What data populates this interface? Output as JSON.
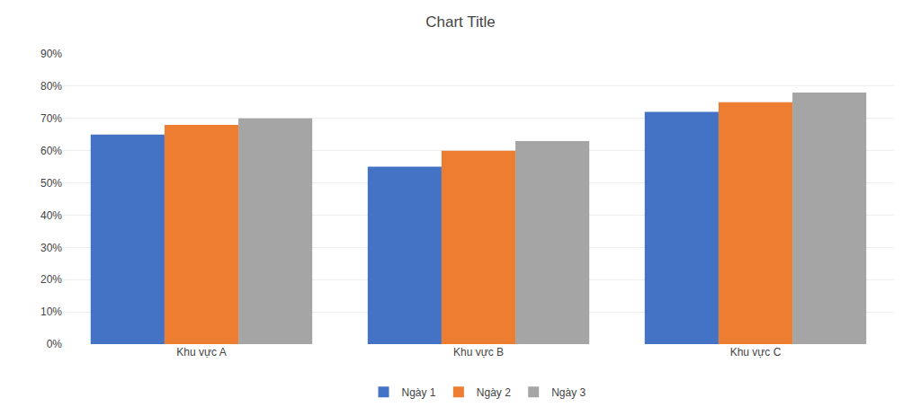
{
  "chart_data": {
    "type": "bar",
    "title": "Chart Title",
    "categories": [
      "Khu vực A",
      "Khu vực B",
      "Khu vực C"
    ],
    "series": [
      {
        "name": "Ngày 1",
        "values": [
          0.65,
          0.55,
          0.72
        ],
        "color": "#4472C4"
      },
      {
        "name": "Ngày 2",
        "values": [
          0.68,
          0.6,
          0.75
        ],
        "color": "#ED7D31"
      },
      {
        "name": "Ngày 3",
        "values": [
          0.7,
          0.63,
          0.78
        ],
        "color": "#A5A5A5"
      }
    ],
    "ylim": [
      0,
      0.9
    ],
    "yticks": [
      {
        "value": 0,
        "label": "0%"
      },
      {
        "value": 0.1,
        "label": "10%"
      },
      {
        "value": 0.2,
        "label": "20%"
      },
      {
        "value": 0.3,
        "label": "30%"
      },
      {
        "value": 0.4,
        "label": "40%"
      },
      {
        "value": 0.5,
        "label": "50%"
      },
      {
        "value": 0.6,
        "label": "60%"
      },
      {
        "value": 0.7,
        "label": "70%"
      },
      {
        "value": 0.8,
        "label": "80%"
      },
      {
        "value": 0.9,
        "label": "90%"
      }
    ],
    "grid": true,
    "legend": "bottom"
  }
}
